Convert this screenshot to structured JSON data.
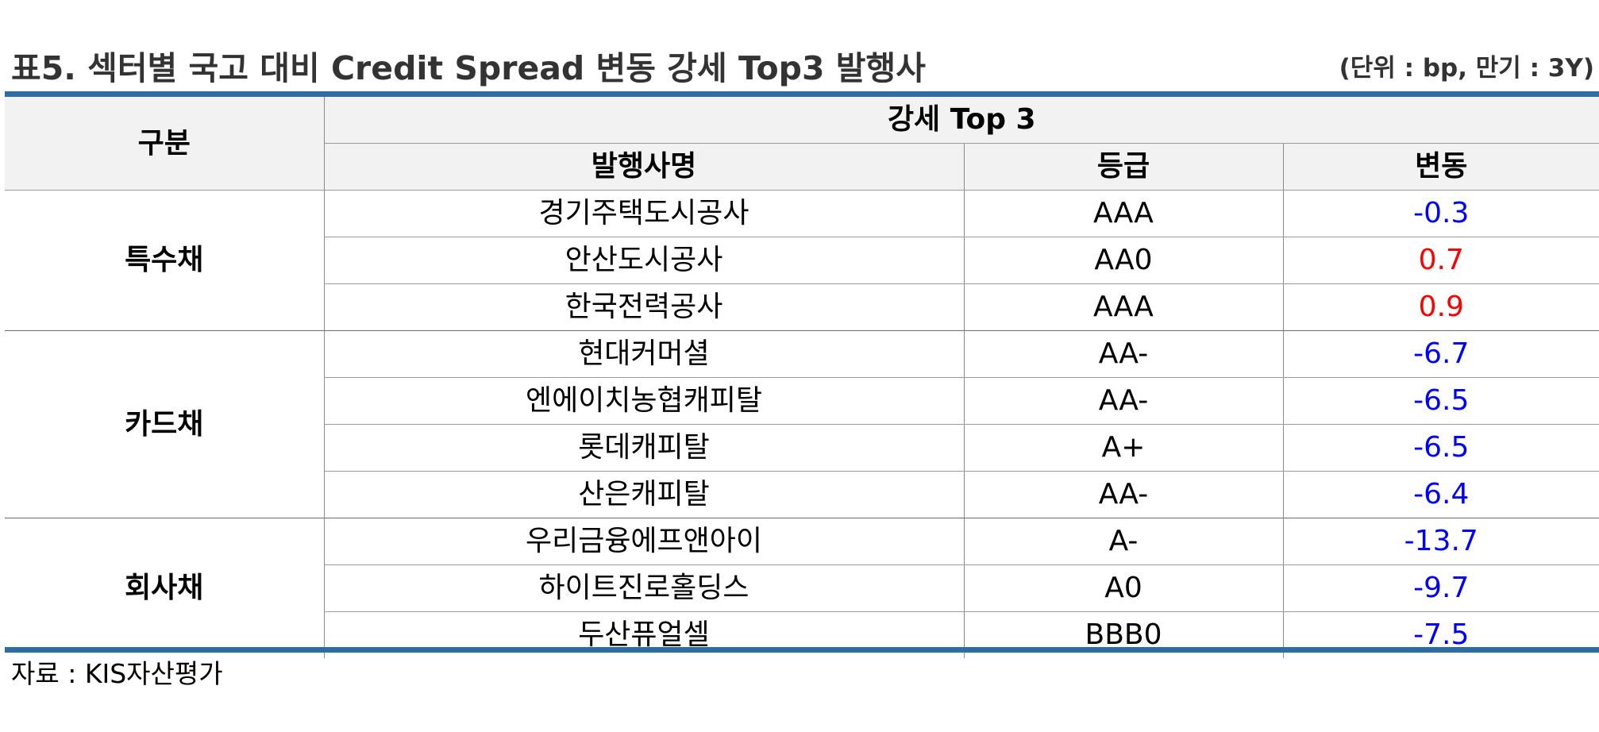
{
  "title": "표5. 섹터별 국고 대비 Credit Spread 변동 강세 Top3 발행사",
  "unit_note": "(단위 : bp, 만기 : 3Y)",
  "header": {
    "category": "구분",
    "group": "강세 Top 3",
    "columns": [
      "발행사명",
      "등급",
      "변동"
    ]
  },
  "sectors": [
    {
      "name": "특수채",
      "rows": [
        {
          "issuer": "경기주택도시공사",
          "grade": "AAA",
          "change": "-0.3"
        },
        {
          "issuer": "안산도시공사",
          "grade": "AA0",
          "change": "0.7"
        },
        {
          "issuer": "한국전력공사",
          "grade": "AAA",
          "change": "0.9"
        }
      ]
    },
    {
      "name": "카드채",
      "rows": [
        {
          "issuer": "현대커머셜",
          "grade": "AA-",
          "change": "-6.7"
        },
        {
          "issuer": "엔에이치농협캐피탈",
          "grade": "AA-",
          "change": "-6.5"
        },
        {
          "issuer": "롯데캐피탈",
          "grade": "A+",
          "change": "-6.5"
        },
        {
          "issuer": "산은캐피탈",
          "grade": "AA-",
          "change": "-6.4"
        }
      ]
    },
    {
      "name": "회사채",
      "rows": [
        {
          "issuer": "우리금융에프앤아이",
          "grade": "A-",
          "change": "-13.7"
        },
        {
          "issuer": "하이트진로홀딩스",
          "grade": "A0",
          "change": "-9.7"
        },
        {
          "issuer": "두산퓨얼셀",
          "grade": "BBB0",
          "change": "-7.5"
        }
      ]
    }
  ],
  "source": "자료 : KIS자산평가",
  "colors": {
    "accent_rule": "#2e6da4",
    "header_bg": "#f2f2f2",
    "negative": "#0000ff",
    "positive": "#ff0000"
  }
}
